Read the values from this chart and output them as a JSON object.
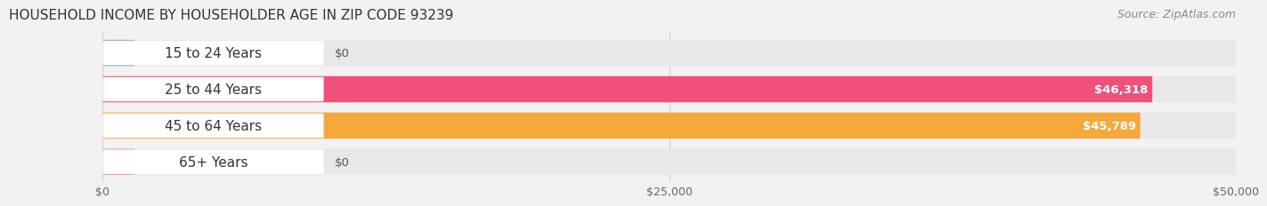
{
  "title": "HOUSEHOLD INCOME BY HOUSEHOLDER AGE IN ZIP CODE 93239",
  "source": "Source: ZipAtlas.com",
  "categories": [
    "15 to 24 Years",
    "25 to 44 Years",
    "45 to 64 Years",
    "65+ Years"
  ],
  "values": [
    0,
    46318,
    45789,
    0
  ],
  "bar_colors": [
    "#a0a0cc",
    "#f0507a",
    "#f5a83c",
    "#f5a0a0"
  ],
  "value_labels": [
    "$0",
    "$46,318",
    "$45,789",
    "$0"
  ],
  "xlim": [
    0,
    50000
  ],
  "xticks": [
    0,
    25000,
    50000
  ],
  "xtick_labels": [
    "$0",
    "$25,000",
    "$50,000"
  ],
  "background_color": "#f2f2f2",
  "bar_bg_color": "#e8e8e8",
  "title_fontsize": 11,
  "source_fontsize": 9,
  "label_fontsize": 11,
  "value_fontsize": 9.5
}
